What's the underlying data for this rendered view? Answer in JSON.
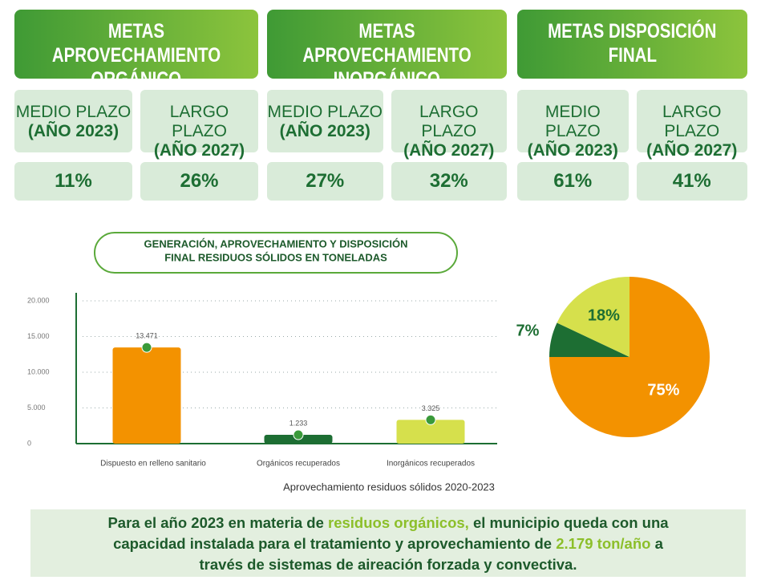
{
  "goals": [
    {
      "title": [
        "METAS APROVECHAMIENTO",
        "ORGÁNICO"
      ],
      "terms": [
        {
          "label": "MEDIO PLAZO",
          "year": "(AÑO 2023)",
          "value": "11%"
        },
        {
          "label": "LARGO PLAZO",
          "year": "(AÑO 2027)",
          "value": "26%"
        }
      ]
    },
    {
      "title": [
        "METAS APROVECHAMIENTO",
        "INORGÁNICO"
      ],
      "terms": [
        {
          "label": "MEDIO PLAZO",
          "year": "(AÑO 2023)",
          "value": "27%"
        },
        {
          "label": "LARGO PLAZO",
          "year": "(AÑO 2027)",
          "value": "32%"
        }
      ]
    },
    {
      "title": [
        "METAS DISPOSICIÓN",
        "FINAL"
      ],
      "terms": [
        {
          "label": "MEDIO PLAZO",
          "year": "(AÑO 2023)",
          "value": "61%"
        },
        {
          "label": "LARGO PLAZO",
          "year": "(AÑO 2027)",
          "value": "41%"
        }
      ]
    }
  ],
  "chart_data": [
    {
      "type": "bar",
      "title": [
        "GENERACIÓN, APROVECHAMIENTO Y DISPOSICIÓN",
        "FINAL RESIDUOS SÓLIDOS EN TONELADAS"
      ],
      "x_label": "Aprovechamiento residuos sólidos 2020-2023",
      "categories": [
        "Dispuesto en relleno sanitario",
        "Orgánicos recuperados",
        "Inorgánicos recuperados"
      ],
      "values": [
        13471,
        1233,
        3325
      ],
      "value_labels": [
        "13.471",
        "1.233",
        "3.325"
      ],
      "colors": [
        "#f39200",
        "#1d6e33",
        "#d6e04c"
      ],
      "ylim": [
        0,
        20000
      ],
      "yticks": [
        0,
        {
          "value": 5000,
          "label": "5.000"
        },
        {
          "value": 10000,
          "label": "10.000"
        },
        {
          "value": 15000,
          "label": "15.000"
        },
        {
          "value": 20000,
          "label": "20.000"
        }
      ],
      "grid": true
    },
    {
      "type": "pie",
      "values": [
        75,
        7,
        18
      ],
      "value_labels": [
        "75%",
        "7%",
        "18%"
      ],
      "colors": [
        "#f39200",
        "#1d6e33",
        "#d6e04c"
      ]
    }
  ],
  "footer": [
    [
      {
        "text": "Para el año 2023 en materia de "
      },
      {
        "text": "residuos orgánicos,",
        "highlight": true
      },
      {
        "text": " el municipio queda con una"
      }
    ],
    [
      {
        "text": "capacidad instalada para el tratamiento y aprovechamiento de "
      },
      {
        "text": "2.179 ton/año",
        "highlight": true
      },
      {
        "text": " a"
      }
    ],
    [
      {
        "text": "través de sistemas de aireación forzada y convectiva."
      }
    ]
  ]
}
